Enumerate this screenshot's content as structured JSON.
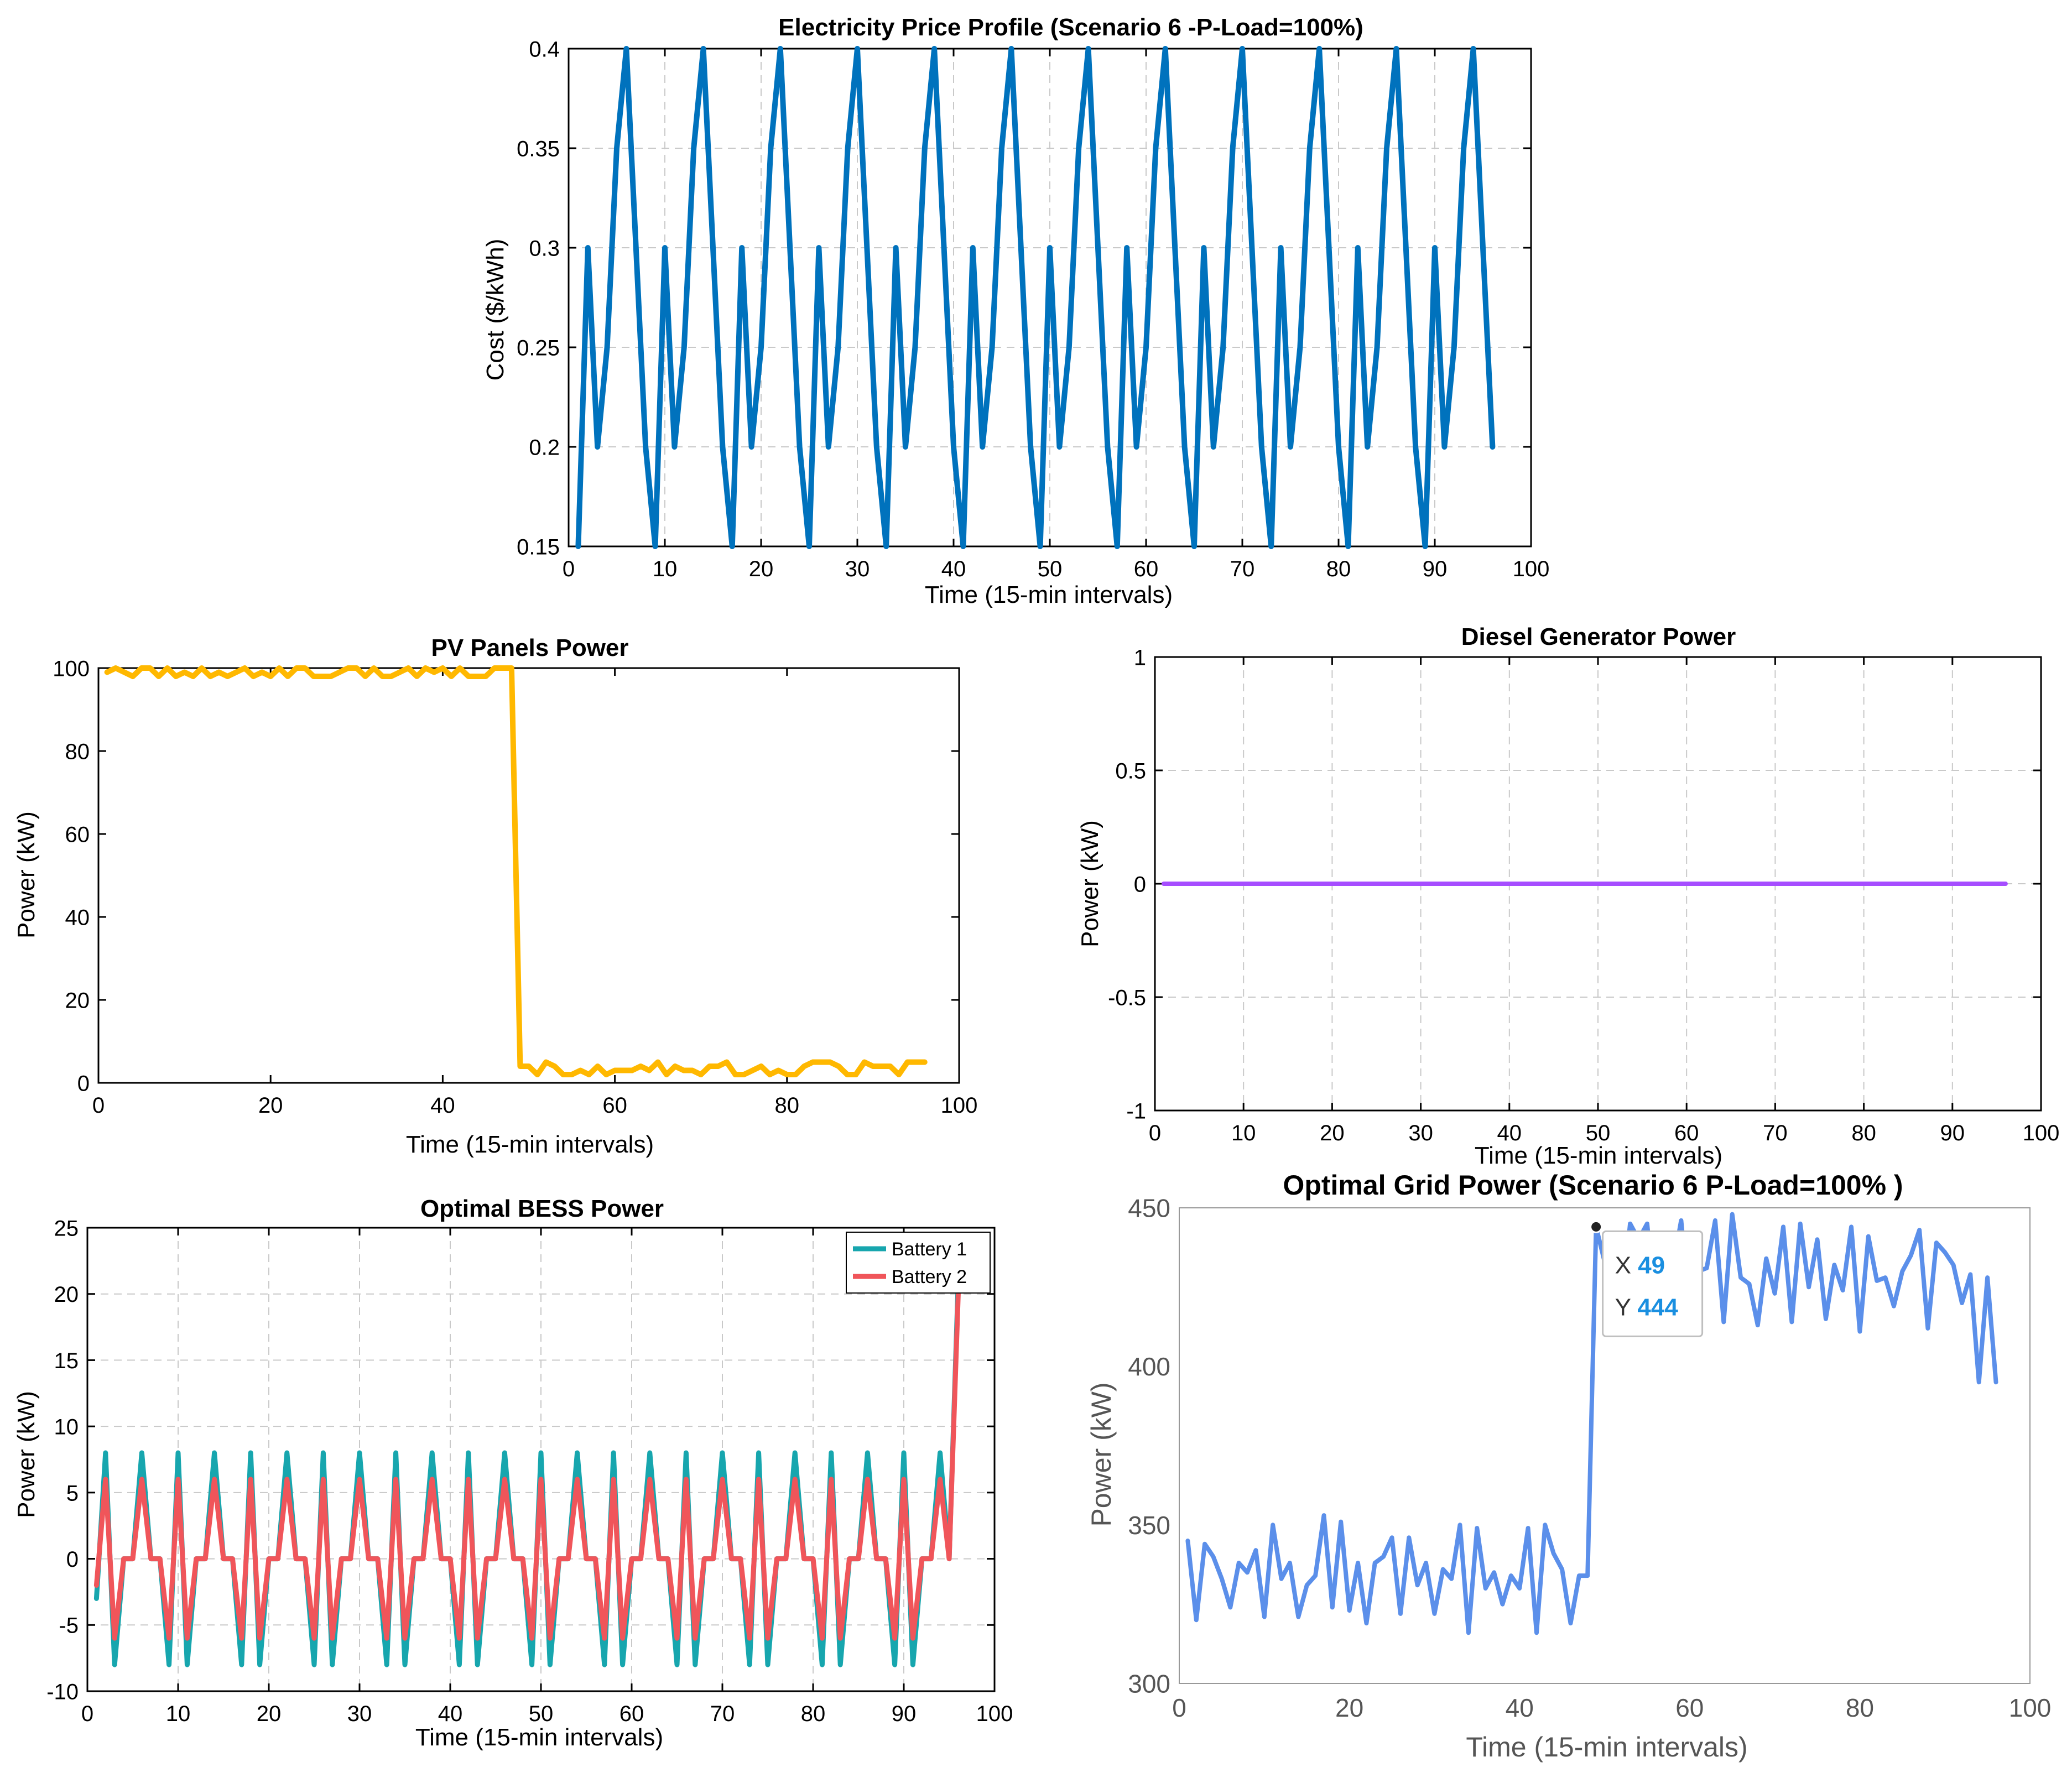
{
  "chart_data": [
    {
      "type": "line",
      "title": "Electricity Price Profile (Scenario 6 -P-Load=100%)",
      "xlabel": "Time (15-min intervals)",
      "ylabel": "Cost ($/kWh)",
      "xlim": [
        0,
        100
      ],
      "ylim": [
        0.15,
        0.4
      ],
      "xticks": [
        0,
        10,
        20,
        30,
        40,
        50,
        60,
        70,
        80,
        90,
        100
      ],
      "yticks": [
        0.15,
        0.2,
        0.25,
        0.3,
        0.35,
        0.4
      ],
      "ytick_labels": [
        "0.15",
        "0.2",
        "0.25",
        "0.3",
        "0.35",
        "0.4"
      ],
      "grid": true,
      "series": [
        {
          "color": "#0072BD",
          "x": [
            1,
            2,
            3,
            4,
            5,
            6,
            7,
            8,
            9,
            10,
            11,
            12,
            13,
            14,
            15,
            16,
            17,
            18,
            19,
            20,
            21,
            22,
            23,
            24,
            25,
            26,
            27,
            28,
            29,
            30,
            31,
            32,
            33,
            34,
            35,
            36,
            37,
            38,
            39,
            40,
            41,
            42,
            43,
            44,
            45,
            46,
            47,
            48,
            49,
            50,
            51,
            52,
            53,
            54,
            55,
            56,
            57,
            58,
            59,
            60,
            61,
            62,
            63,
            64,
            65,
            66,
            67,
            68,
            69,
            70,
            71,
            72,
            73,
            74,
            75,
            76,
            77,
            78,
            79,
            80,
            81,
            82,
            83,
            84,
            85,
            86,
            87,
            88,
            89,
            90,
            91,
            92,
            93,
            94,
            95,
            96
          ],
          "y": [
            0.15,
            0.3,
            0.2,
            0.25,
            0.35,
            0.4,
            0.3,
            0.2,
            0.15,
            0.3,
            0.2,
            0.25,
            0.35,
            0.4,
            0.3,
            0.2,
            0.15,
            0.3,
            0.2,
            0.25,
            0.35,
            0.4,
            0.3,
            0.2,
            0.15,
            0.3,
            0.2,
            0.25,
            0.35,
            0.4,
            0.3,
            0.2,
            0.15,
            0.3,
            0.2,
            0.25,
            0.35,
            0.4,
            0.3,
            0.2,
            0.15,
            0.3,
            0.2,
            0.25,
            0.35,
            0.4,
            0.3,
            0.2,
            0.15,
            0.3,
            0.2,
            0.25,
            0.35,
            0.4,
            0.3,
            0.2,
            0.15,
            0.3,
            0.2,
            0.25,
            0.35,
            0.4,
            0.3,
            0.2,
            0.15,
            0.3,
            0.2,
            0.25,
            0.35,
            0.4,
            0.3,
            0.2,
            0.15,
            0.3,
            0.2,
            0.25,
            0.35,
            0.4,
            0.3,
            0.2,
            0.15,
            0.3,
            0.2,
            0.25,
            0.35,
            0.4,
            0.3,
            0.2,
            0.15,
            0.3,
            0.2,
            0.25,
            0.35,
            0.4,
            0.3,
            0.2
          ]
        }
      ]
    },
    {
      "type": "line",
      "title": "PV Panels Power",
      "xlabel": "Time (15-min intervals)",
      "ylabel": "Power (kW)",
      "xlim": [
        0,
        100
      ],
      "ylim": [
        0,
        100
      ],
      "xticks": [
        0,
        20,
        40,
        60,
        80,
        100
      ],
      "yticks": [
        0,
        20,
        40,
        60,
        80,
        100
      ],
      "grid": false,
      "series": [
        {
          "color": "#FFB800",
          "x": [
            1,
            2,
            3,
            4,
            5,
            6,
            7,
            8,
            9,
            10,
            11,
            12,
            13,
            14,
            15,
            16,
            17,
            18,
            19,
            20,
            21,
            22,
            23,
            24,
            25,
            26,
            27,
            28,
            29,
            30,
            31,
            32,
            33,
            34,
            35,
            36,
            37,
            38,
            39,
            40,
            41,
            42,
            43,
            44,
            45,
            46,
            47,
            48,
            49,
            50,
            51,
            52,
            53,
            54,
            55,
            56,
            57,
            58,
            59,
            60,
            61,
            62,
            63,
            64,
            65,
            66,
            67,
            68,
            69,
            70,
            71,
            72,
            73,
            74,
            75,
            76,
            77,
            78,
            79,
            80,
            81,
            82,
            83,
            84,
            85,
            86,
            87,
            88,
            89,
            90,
            91,
            92,
            93,
            94,
            95,
            96
          ],
          "y": [
            99,
            100,
            99,
            98,
            100,
            100,
            98,
            100,
            98,
            99,
            98,
            100,
            98,
            99,
            98,
            99,
            100,
            98,
            99,
            98,
            100,
            98,
            100,
            100,
            98,
            98,
            98,
            99,
            100,
            100,
            98,
            100,
            98,
            98,
            99,
            100,
            98,
            100,
            99,
            100,
            98,
            100,
            98,
            98,
            98,
            100,
            100,
            100,
            4,
            4,
            2,
            5,
            4,
            2,
            2,
            3,
            2,
            4,
            2,
            3,
            3,
            3,
            4,
            3,
            5,
            2,
            4,
            3,
            3,
            2,
            4,
            4,
            5,
            2,
            2,
            3,
            4,
            2,
            3,
            2,
            2,
            4,
            5,
            5,
            5,
            4,
            2,
            2,
            5,
            4,
            4,
            4,
            2,
            5,
            5,
            5
          ]
        }
      ]
    },
    {
      "type": "line",
      "title": "Diesel Generator Power",
      "xlabel": "Time (15-min intervals)",
      "ylabel": "Power (kW)",
      "xlim": [
        0,
        100
      ],
      "ylim": [
        -1,
        1
      ],
      "xticks": [
        0,
        10,
        20,
        30,
        40,
        50,
        60,
        70,
        80,
        90,
        100
      ],
      "yticks": [
        -1,
        -0.5,
        0,
        0.5,
        1
      ],
      "ytick_labels": [
        "-1",
        "-0.5",
        "0",
        "0.5",
        "1"
      ],
      "grid": true,
      "series": [
        {
          "color": "#A64DFF",
          "x": [
            1,
            96
          ],
          "y": [
            0,
            0
          ]
        }
      ]
    },
    {
      "type": "line",
      "title": "Optimal BESS Power",
      "xlabel": "Time (15-min intervals)",
      "ylabel": "Power (kW)",
      "xlim": [
        0,
        100
      ],
      "ylim": [
        -10,
        25
      ],
      "xticks": [
        0,
        10,
        20,
        30,
        40,
        50,
        60,
        70,
        80,
        90,
        100
      ],
      "yticks": [
        -10,
        -5,
        0,
        5,
        10,
        15,
        20,
        25
      ],
      "grid": true,
      "legend": "top-right",
      "series": [
        {
          "name": "Battery 1",
          "color": "#17A6AE",
          "x": [
            1,
            2,
            3,
            4,
            5,
            6,
            7,
            8,
            9,
            10,
            11,
            12,
            13,
            14,
            15,
            16,
            17,
            18,
            19,
            20,
            21,
            22,
            23,
            24,
            25,
            26,
            27,
            28,
            29,
            30,
            31,
            32,
            33,
            34,
            35,
            36,
            37,
            38,
            39,
            40,
            41,
            42,
            43,
            44,
            45,
            46,
            47,
            48,
            49,
            50,
            51,
            52,
            53,
            54,
            55,
            56,
            57,
            58,
            59,
            60,
            61,
            62,
            63,
            64,
            65,
            66,
            67,
            68,
            69,
            70,
            71,
            72,
            73,
            74,
            75,
            76,
            77,
            78,
            79,
            80,
            81,
            82,
            83,
            84,
            85,
            86,
            87,
            88,
            89,
            90,
            91,
            92,
            93,
            94,
            95,
            96
          ],
          "y": [
            -3,
            8,
            -8,
            0,
            0,
            8,
            0,
            0,
            -8,
            8,
            -8,
            0,
            0,
            8,
            0,
            0,
            -8,
            8,
            -8,
            0,
            0,
            8,
            0,
            0,
            -8,
            8,
            -8,
            0,
            0,
            8,
            0,
            0,
            -8,
            8,
            -8,
            0,
            0,
            8,
            0,
            0,
            -8,
            8,
            -8,
            0,
            0,
            8,
            0,
            0,
            -8,
            8,
            -8,
            0,
            0,
            8,
            0,
            0,
            -8,
            8,
            -8,
            0,
            0,
            8,
            0,
            0,
            -8,
            8,
            -8,
            0,
            0,
            8,
            0,
            0,
            -8,
            8,
            -8,
            0,
            0,
            8,
            0,
            0,
            -8,
            8,
            -8,
            0,
            0,
            8,
            0,
            0,
            -8,
            8,
            -8,
            0,
            0,
            8,
            0,
            21
          ]
        },
        {
          "name": "Battery 2",
          "color": "#F0555A",
          "x": [
            1,
            2,
            3,
            4,
            5,
            6,
            7,
            8,
            9,
            10,
            11,
            12,
            13,
            14,
            15,
            16,
            17,
            18,
            19,
            20,
            21,
            22,
            23,
            24,
            25,
            26,
            27,
            28,
            29,
            30,
            31,
            32,
            33,
            34,
            35,
            36,
            37,
            38,
            39,
            40,
            41,
            42,
            43,
            44,
            45,
            46,
            47,
            48,
            49,
            50,
            51,
            52,
            53,
            54,
            55,
            56,
            57,
            58,
            59,
            60,
            61,
            62,
            63,
            64,
            65,
            66,
            67,
            68,
            69,
            70,
            71,
            72,
            73,
            74,
            75,
            76,
            77,
            78,
            79,
            80,
            81,
            82,
            83,
            84,
            85,
            86,
            87,
            88,
            89,
            90,
            91,
            92,
            93,
            94,
            95,
            96
          ],
          "y": [
            -2,
            6,
            -6,
            0,
            0,
            6,
            0,
            0,
            -6,
            6,
            -6,
            0,
            0,
            6,
            0,
            0,
            -6,
            6,
            -6,
            0,
            0,
            6,
            0,
            0,
            -6,
            6,
            -6,
            0,
            0,
            6,
            0,
            0,
            -6,
            6,
            -6,
            0,
            0,
            6,
            0,
            0,
            -6,
            6,
            -6,
            0,
            0,
            6,
            0,
            0,
            -6,
            6,
            -6,
            0,
            0,
            6,
            0,
            0,
            -6,
            6,
            -6,
            0,
            0,
            6,
            0,
            0,
            -6,
            6,
            -6,
            0,
            0,
            6,
            0,
            0,
            -6,
            6,
            -6,
            0,
            0,
            6,
            0,
            0,
            -6,
            6,
            -6,
            0,
            0,
            6,
            0,
            0,
            -6,
            6,
            -6,
            0,
            0,
            6,
            0,
            20
          ]
        }
      ]
    },
    {
      "type": "line",
      "title": "Optimal Grid Power (Scenario 6 P-Load=100%  )",
      "xlabel": "Time (15-min intervals)",
      "ylabel": "Power (kW)",
      "xlim": [
        0,
        100
      ],
      "ylim": [
        300,
        450
      ],
      "xticks": [
        0,
        20,
        40,
        60,
        80,
        100
      ],
      "yticks": [
        300,
        350,
        400,
        450
      ],
      "grid": false,
      "datatip": {
        "x_label": "X",
        "x_value": "49",
        "y_label": "Y",
        "y_value": "444"
      },
      "series": [
        {
          "color": "#5B8FEA",
          "x": [
            1,
            2,
            3,
            4,
            5,
            6,
            7,
            8,
            9,
            10,
            11,
            12,
            13,
            14,
            15,
            16,
            17,
            18,
            19,
            20,
            21,
            22,
            23,
            24,
            25,
            26,
            27,
            28,
            29,
            30,
            31,
            32,
            33,
            34,
            35,
            36,
            37,
            38,
            39,
            40,
            41,
            42,
            43,
            44,
            45,
            46,
            47,
            48,
            49,
            50,
            51,
            52,
            53,
            54,
            55,
            56,
            57,
            58,
            59,
            60,
            61,
            62,
            63,
            64,
            65,
            66,
            67,
            68,
            69,
            70,
            71,
            72,
            73,
            74,
            75,
            76,
            77,
            78,
            79,
            80,
            81,
            82,
            83,
            84,
            85,
            86,
            87,
            88,
            89,
            90,
            91,
            92,
            93,
            94,
            95,
            96
          ],
          "y": [
            345,
            320,
            344,
            340,
            333,
            324,
            338,
            335,
            342,
            321,
            350,
            333,
            338,
            321,
            331,
            334,
            353,
            324,
            351,
            323,
            338,
            319,
            338,
            340,
            346,
            322,
            346,
            331,
            338,
            322,
            336,
            333,
            350,
            316,
            349,
            330,
            335,
            325,
            334,
            330,
            349,
            316,
            350,
            341,
            336,
            319,
            334,
            334,
            444,
            433,
            442,
            418,
            445,
            440,
            445,
            417,
            442,
            431,
            446,
            418,
            430,
            431,
            446,
            414,
            448,
            428,
            426,
            413,
            434,
            423,
            444,
            414,
            445,
            425,
            440,
            415,
            432,
            424,
            444,
            411,
            441,
            427,
            428,
            419,
            430,
            435,
            443,
            412,
            439,
            436,
            432,
            420,
            429,
            395,
            428,
            395
          ]
        }
      ]
    }
  ]
}
